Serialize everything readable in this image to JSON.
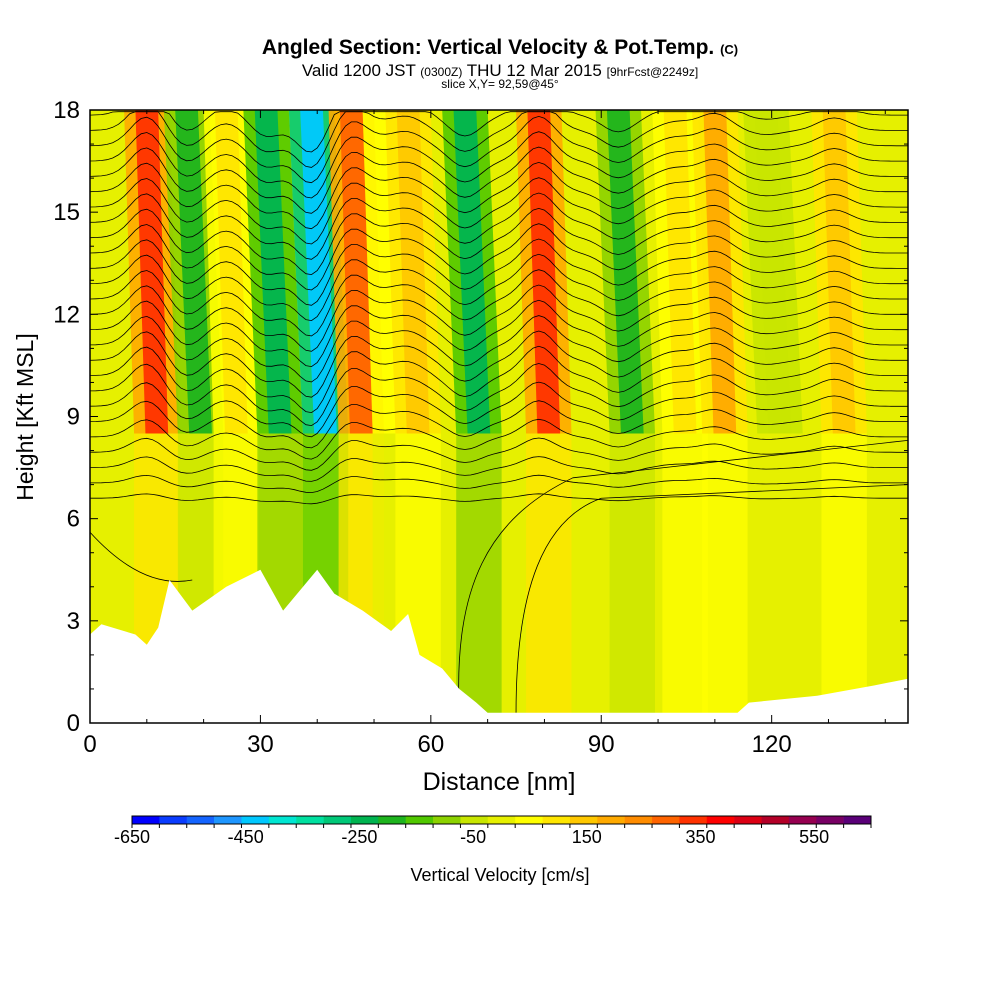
{
  "chart_data": {
    "type": "heatmap",
    "title": "Angled Section: Vertical Velocity & Pot.Temp.",
    "title_unit": "(C)",
    "subtitle_valid": "Valid 1200 JST",
    "subtitle_utc": "(0300Z)",
    "subtitle_date": "THU 12 Mar 2015",
    "subtitle_fcst": "[9hrFcst@2249z]",
    "slice_label": "slice X,Y= 92,59@45°",
    "xlabel": "Distance [nm]",
    "ylabel": "Height [Kft MSL]",
    "xlim": [
      0,
      144
    ],
    "ylim": [
      0,
      18
    ],
    "x_ticks": [
      "0",
      "30",
      "60",
      "90",
      "120"
    ],
    "y_ticks": [
      "0",
      "3",
      "6",
      "9",
      "12",
      "15",
      "18"
    ],
    "colorbar": {
      "label": "Vertical Velocity [cm/s]",
      "tick_labels": [
        "-650",
        "-450",
        "-250",
        "-50",
        "150",
        "350",
        "550"
      ],
      "colors": [
        "#0000ff",
        "#0a3cff",
        "#1464ff",
        "#1e96ff",
        "#00c8ff",
        "#00e6d2",
        "#00e0a0",
        "#00c878",
        "#00b450",
        "#1eb41e",
        "#50c800",
        "#8cd200",
        "#c8e600",
        "#e6f000",
        "#ffff00",
        "#ffe600",
        "#ffc800",
        "#ffaa00",
        "#ff8c00",
        "#ff6400",
        "#ff3200",
        "#ff0000",
        "#dc0014",
        "#b40028",
        "#960050",
        "#780064",
        "#5a0078"
      ]
    },
    "velocity_bands": [
      {
        "x_center": 10,
        "velocity": 350
      },
      {
        "x_center": 17,
        "velocity": -200
      },
      {
        "x_center": 24,
        "velocity": 100
      },
      {
        "x_center": 31,
        "velocity": -250
      },
      {
        "x_center": 39,
        "velocity": -450
      },
      {
        "x_center": 46,
        "velocity": 300
      },
      {
        "x_center": 52,
        "velocity": 50
      },
      {
        "x_center": 56,
        "velocity": 150
      },
      {
        "x_center": 66,
        "velocity": -250
      },
      {
        "x_center": 79,
        "velocity": 350
      },
      {
        "x_center": 93,
        "velocity": -200
      },
      {
        "x_center": 103,
        "velocity": 100
      },
      {
        "x_center": 110,
        "velocity": 200
      },
      {
        "x_center": 119,
        "velocity": -50
      },
      {
        "x_center": 131,
        "velocity": 150
      }
    ],
    "terrain_height_kft": [
      [
        0,
        2.6
      ],
      [
        2,
        2.9
      ],
      [
        8,
        2.6
      ],
      [
        10,
        2.3
      ],
      [
        12,
        2.8
      ],
      [
        14,
        4.2
      ],
      [
        18,
        3.3
      ],
      [
        24,
        4.0
      ],
      [
        30,
        4.5
      ],
      [
        34,
        3.3
      ],
      [
        40,
        4.5
      ],
      [
        43,
        3.8
      ],
      [
        48,
        3.3
      ],
      [
        53,
        2.7
      ],
      [
        56,
        3.2
      ],
      [
        58,
        2.0
      ],
      [
        62,
        1.6
      ],
      [
        65,
        1.0
      ],
      [
        68,
        0.6
      ],
      [
        70,
        0.3
      ],
      [
        80,
        0.3
      ],
      [
        90,
        0.3
      ],
      [
        100,
        0.3
      ],
      [
        114,
        0.3
      ],
      [
        116,
        0.6
      ],
      [
        128,
        0.8
      ],
      [
        138,
        1.1
      ],
      [
        144,
        1.3
      ]
    ]
  }
}
